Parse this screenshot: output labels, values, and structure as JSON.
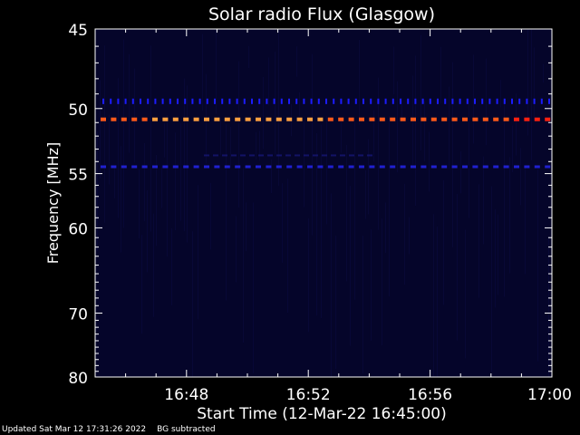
{
  "chart_data": {
    "type": "heatmap",
    "title": "Solar radio Flux (Glasgow)",
    "xlabel": "Start Time (12-Mar-22 16:45:00)",
    "ylabel": "Frequency [MHz]",
    "x_ticks": [
      "16:48",
      "16:52",
      "16:56",
      "17:00"
    ],
    "x_tick_minutes": [
      3,
      7,
      11,
      15
    ],
    "xlim_minutes": [
      0,
      15
    ],
    "y_ticks": [
      45,
      50,
      55,
      60,
      70,
      80
    ],
    "ylim": [
      45,
      80
    ],
    "y_scale": "reciprocal",
    "grid": false,
    "bands": [
      {
        "freq": 49.5,
        "intensity": "low",
        "color": "#1c1cff",
        "style": "ticks"
      },
      {
        "freq": 50.8,
        "intensity": "high",
        "color": "#ff5a1a",
        "style": "dashes"
      },
      {
        "freq": 53.5,
        "intensity": "very-low",
        "color": "#1a1a80",
        "style": "faint"
      },
      {
        "freq": 54.5,
        "intensity": "low",
        "color": "#2020d0",
        "style": "dashes"
      }
    ],
    "background_color": "#05052a"
  },
  "footer": {
    "updated": "Updated Sat Mar 12 17:31:26 2022",
    "note": "BG subtracted"
  }
}
